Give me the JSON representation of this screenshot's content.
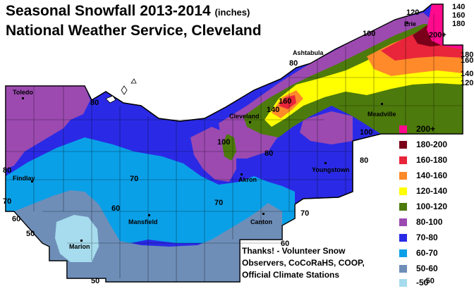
{
  "title": {
    "line1": "Seasonal Snowfall 2013-2014",
    "units": "(inches)",
    "line2": "National Weather Service, Cleveland"
  },
  "cities": [
    "Erie",
    "Ashtabula",
    "Toledo",
    "Cleveland",
    "Meadville",
    "Findlay",
    "Akron",
    "Youngstown",
    "Mansfield",
    "Canton",
    "Marion"
  ],
  "contour_labels": [
    "120",
    "140",
    "160",
    "180",
    "200+",
    "100",
    "180",
    "160",
    "140",
    "120",
    "80",
    "80",
    "160",
    "140",
    "100",
    "100",
    "80",
    "80",
    "70",
    "70",
    "80",
    "70",
    "60",
    "60",
    "70",
    "50",
    "60",
    "50",
    "-50"
  ],
  "legend": [
    {
      "label": "200+",
      "color": "#ff0a8c"
    },
    {
      "label": "180-200",
      "color": "#7a0019"
    },
    {
      "label": "160-180",
      "color": "#e8253a"
    },
    {
      "label": "140-160",
      "color": "#ff8a2a"
    },
    {
      "label": "120-140",
      "color": "#ffff00"
    },
    {
      "label": "100-120",
      "color": "#4d7a0c"
    },
    {
      "label": "80-100",
      "color": "#9c4ab0"
    },
    {
      "label": "70-80",
      "color": "#2a2ae6"
    },
    {
      "label": "60-70",
      "color": "#0aa0e8"
    },
    {
      "label": "50-60",
      "color": "#6e8eb8"
    },
    {
      "label": "-50",
      "color": "#a6dced"
    }
  ],
  "credits": [
    "Thanks! - Volunteer Snow",
    "Observers, CoCoRaHS, COOP,",
    "Official Climate Stations"
  ]
}
